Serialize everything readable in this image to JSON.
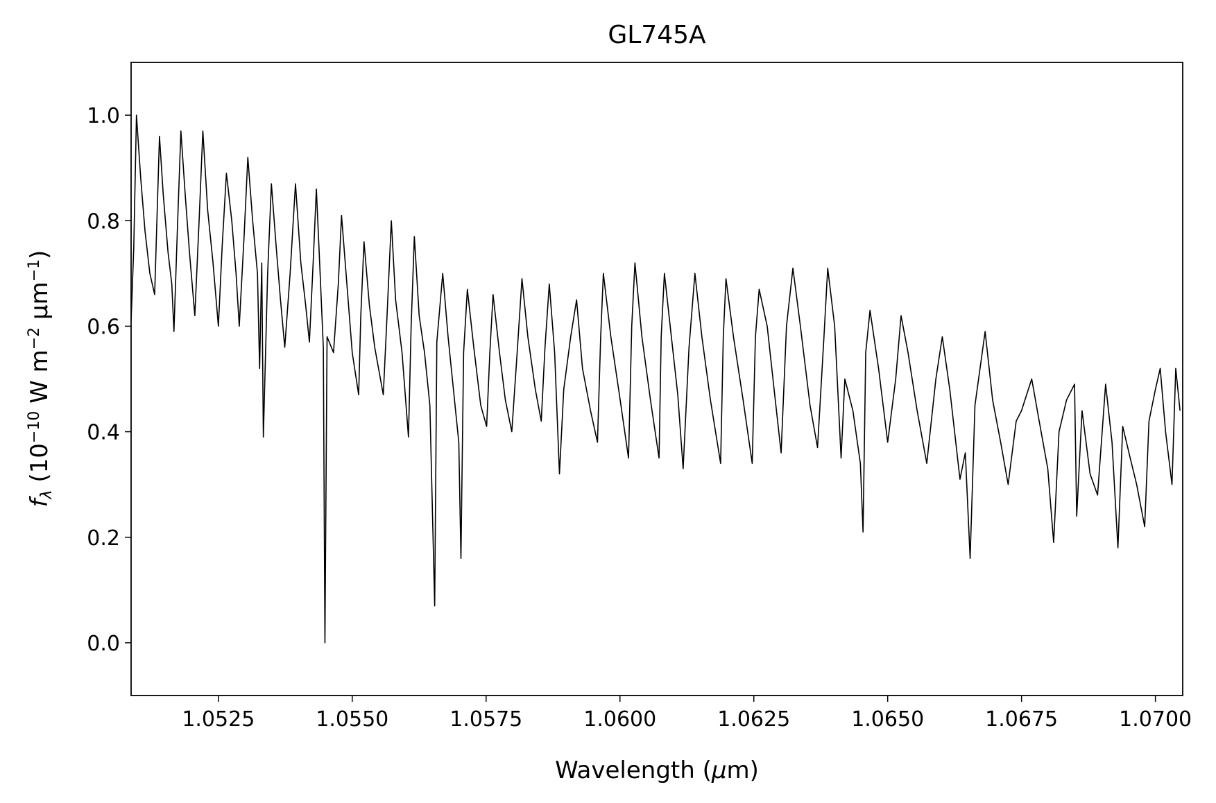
{
  "chart_data": {
    "type": "line",
    "title": "GL745A",
    "xlabel": [
      "Wavelength (",
      "μ",
      "m)"
    ],
    "ylabel": [
      "f",
      "λ",
      " (10",
      "−10",
      " W m",
      "−2",
      " μm",
      "−1",
      ")"
    ],
    "color": "#000000",
    "xlim": [
      1.05087,
      1.07051
    ],
    "ylim": [
      -0.1,
      1.1
    ],
    "xticks": [
      1.0525,
      {
        "value": 1.055,
        "label": "1.0550"
      },
      1.0575,
      {
        "value": 1.06,
        "label": "1.0600"
      },
      1.0625,
      {
        "value": 1.065,
        "label": "1.0650"
      },
      1.0675,
      {
        "value": 1.07,
        "label": "1.0700"
      }
    ],
    "yticks": [
      {
        "value": 0,
        "label": "0.0"
      },
      0.2,
      0.4,
      0.6,
      0.8,
      {
        "value": 1,
        "label": "1.0"
      }
    ],
    "x": [
      1.05087,
      1.05092,
      1.05097,
      1.05105,
      1.05113,
      1.05122,
      1.05131,
      1.0514,
      1.05147,
      1.05156,
      1.05163,
      1.05167,
      1.05174,
      1.0518,
      1.05188,
      1.05196,
      1.05206,
      1.05214,
      1.05221,
      1.0523,
      1.0524,
      1.0525,
      1.05257,
      1.05265,
      1.05275,
      1.05283,
      1.05289,
      1.05298,
      1.05305,
      1.05314,
      1.05323,
      1.05327,
      1.05331,
      1.05334,
      1.05342,
      1.05349,
      1.05358,
      1.05366,
      1.05374,
      1.05384,
      1.05394,
      1.05404,
      1.05413,
      1.0542,
      1.05427,
      1.05433,
      1.0544,
      1.05446,
      1.05449,
      1.05453,
      1.05465,
      1.05474,
      1.0548,
      1.0549,
      1.055,
      1.05512,
      1.05516,
      1.05522,
      1.05532,
      1.05542,
      1.05558,
      1.05565,
      1.05573,
      1.05581,
      1.05593,
      1.05605,
      1.0561,
      1.05616,
      1.05625,
      1.05635,
      1.05645,
      1.05654,
      1.05658,
      1.05669,
      1.05679,
      1.0569,
      1.05699,
      1.05703,
      1.05708,
      1.05715,
      1.05727,
      1.0574,
      1.05751,
      1.05757,
      1.05763,
      1.05775,
      1.05786,
      1.05798,
      1.05808,
      1.05817,
      1.05828,
      1.05842,
      1.05853,
      1.0586,
      1.05868,
      1.05878,
      1.05887,
      1.05895,
      1.05908,
      1.05919,
      1.0593,
      1.05945,
      1.05958,
      1.05964,
      1.05969,
      1.05983,
      1.05999,
      1.06016,
      1.06022,
      1.06028,
      1.06041,
      1.06057,
      1.06073,
      1.06077,
      1.06083,
      1.06096,
      1.06108,
      1.06118,
      1.06129,
      1.0614,
      1.06153,
      1.06169,
      1.06188,
      1.06193,
      1.06198,
      1.06212,
      1.0623,
      1.06247,
      1.06253,
      1.0626,
      1.06275,
      1.06289,
      1.06301,
      1.06311,
      1.06323,
      1.06337,
      1.06355,
      1.06369,
      1.06381,
      1.06388,
      1.06401,
      1.06413,
      1.0642,
      1.06435,
      1.06449,
      1.06454,
      1.06459,
      1.06467,
      1.06483,
      1.065,
      1.06515,
      1.06525,
      1.06538,
      1.06555,
      1.06573,
      1.0659,
      1.06602,
      1.06616,
      1.06635,
      1.06645,
      1.06654,
      1.06663,
      1.06682,
      1.06696,
      1.06711,
      1.06725,
      1.0674,
      1.0675,
      1.06769,
      1.06783,
      1.06799,
      1.0681,
      1.0682,
      1.06834,
      1.06849,
      1.06853,
      1.06863,
      1.06878,
      1.06892,
      1.06907,
      1.06919,
      1.0693,
      1.06939,
      1.06953,
      1.06965,
      1.0698,
      1.06988,
      1.07,
      1.07009,
      1.07019,
      1.07031,
      1.07038,
      1.07046
    ],
    "values": [
      0.61,
      0.75,
      1.0,
      0.88,
      0.78,
      0.7,
      0.66,
      0.96,
      0.85,
      0.74,
      0.68,
      0.59,
      0.8,
      0.97,
      0.85,
      0.74,
      0.62,
      0.8,
      0.97,
      0.82,
      0.72,
      0.6,
      0.75,
      0.89,
      0.8,
      0.7,
      0.6,
      0.77,
      0.92,
      0.8,
      0.7,
      0.52,
      0.72,
      0.39,
      0.7,
      0.87,
      0.75,
      0.65,
      0.56,
      0.7,
      0.87,
      0.72,
      0.64,
      0.57,
      0.72,
      0.86,
      0.7,
      0.56,
      0.0,
      0.58,
      0.55,
      0.68,
      0.81,
      0.68,
      0.55,
      0.47,
      0.62,
      0.76,
      0.64,
      0.56,
      0.47,
      0.62,
      0.8,
      0.65,
      0.55,
      0.39,
      0.6,
      0.77,
      0.62,
      0.55,
      0.45,
      0.07,
      0.57,
      0.7,
      0.58,
      0.47,
      0.38,
      0.16,
      0.55,
      0.67,
      0.56,
      0.45,
      0.41,
      0.55,
      0.66,
      0.55,
      0.46,
      0.4,
      0.55,
      0.69,
      0.58,
      0.48,
      0.42,
      0.56,
      0.68,
      0.55,
      0.32,
      0.48,
      0.58,
      0.65,
      0.52,
      0.44,
      0.38,
      0.58,
      0.7,
      0.58,
      0.47,
      0.35,
      0.6,
      0.72,
      0.58,
      0.46,
      0.35,
      0.58,
      0.7,
      0.58,
      0.47,
      0.33,
      0.56,
      0.7,
      0.58,
      0.46,
      0.34,
      0.58,
      0.69,
      0.58,
      0.46,
      0.34,
      0.58,
      0.67,
      0.6,
      0.47,
      0.36,
      0.6,
      0.71,
      0.6,
      0.45,
      0.37,
      0.58,
      0.71,
      0.6,
      0.35,
      0.5,
      0.44,
      0.34,
      0.21,
      0.55,
      0.63,
      0.52,
      0.38,
      0.5,
      0.62,
      0.55,
      0.44,
      0.34,
      0.5,
      0.58,
      0.48,
      0.31,
      0.36,
      0.16,
      0.45,
      0.59,
      0.46,
      0.38,
      0.3,
      0.42,
      0.44,
      0.5,
      0.42,
      0.33,
      0.19,
      0.4,
      0.46,
      0.49,
      0.24,
      0.44,
      0.32,
      0.28,
      0.49,
      0.38,
      0.18,
      0.41,
      0.35,
      0.3,
      0.22,
      0.42,
      0.48,
      0.52,
      0.4,
      0.3,
      0.52,
      0.44
    ]
  }
}
